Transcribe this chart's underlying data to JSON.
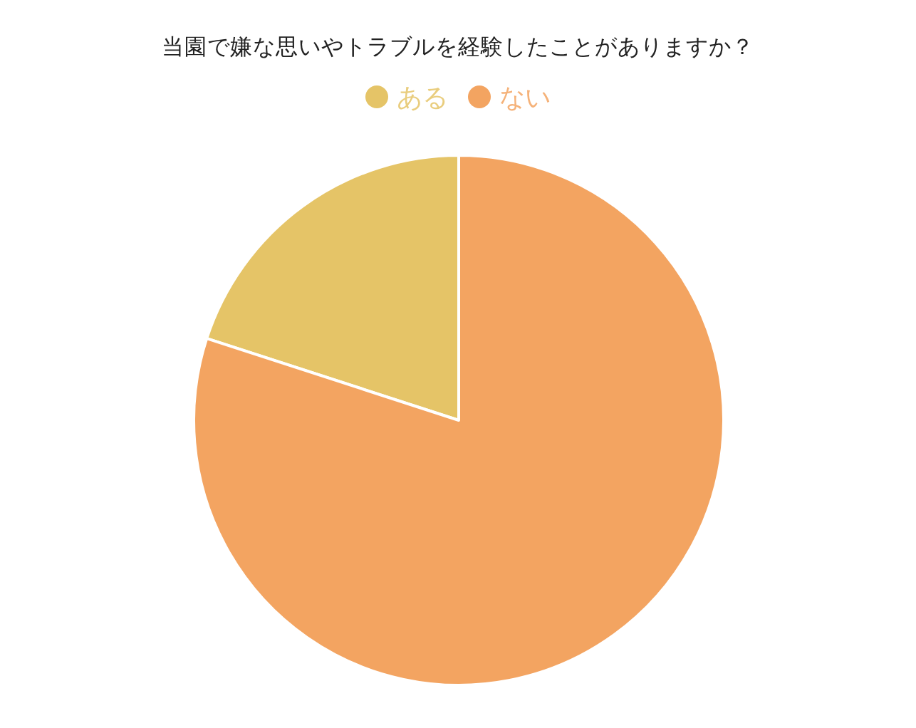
{
  "chart_data": {
    "type": "pie",
    "title": "当園で嫌な思いやトラブルを経験したことがありますか？",
    "categories": [
      "ある",
      "ない"
    ],
    "values": [
      20,
      80
    ],
    "colors": [
      "#e5c467",
      "#f3a461"
    ],
    "legend": "top"
  }
}
